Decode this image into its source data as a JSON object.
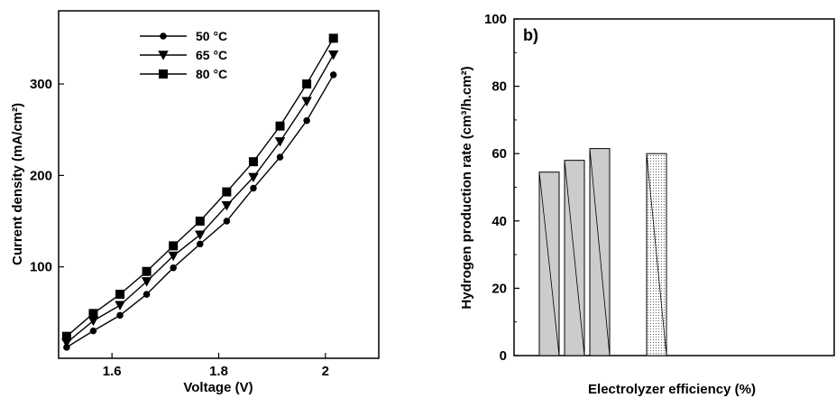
{
  "chart_data": [
    {
      "type": "line",
      "title": "",
      "xlabel": "Voltage (V)",
      "ylabel": "Current density (mA/cm²)",
      "xlim": [
        1.5,
        2.1
      ],
      "ylim": [
        0,
        380
      ],
      "xticks": [
        "1.6",
        "1.8",
        "2"
      ],
      "xtick_values": [
        1.6,
        1.8,
        2.0
      ],
      "yticks": [
        "100",
        "200",
        "300"
      ],
      "ytick_values": [
        100,
        200,
        300
      ],
      "grid": false,
      "legend_position": "top-left",
      "x": [
        1.515,
        1.565,
        1.615,
        1.665,
        1.715,
        1.765,
        1.815,
        1.865,
        1.915,
        1.965,
        2.015
      ],
      "series": [
        {
          "name": "50 °C",
          "marker": "circle",
          "values": [
            12,
            30,
            47,
            70,
            99,
            125,
            150,
            186,
            220,
            260,
            310
          ]
        },
        {
          "name": "65 °C",
          "marker": "triangle-down",
          "values": [
            17,
            41,
            58,
            84,
            112,
            135,
            167,
            198,
            237,
            281,
            332
          ]
        },
        {
          "name": "80 °C",
          "marker": "square",
          "values": [
            24,
            49,
            70,
            95,
            123,
            150,
            182,
            215,
            254,
            300,
            350
          ]
        }
      ]
    },
    {
      "type": "bar",
      "panel_label": "b)",
      "title": "",
      "xlabel": "Electrolyzer efficiency (%)",
      "ylabel": "Hydrogen production rate (cm³/h.cm²)",
      "ylim": [
        0,
        100
      ],
      "yticks": [
        "0",
        "20",
        "40",
        "60",
        "80",
        "100"
      ],
      "ytick_values": [
        0,
        20,
        40,
        60,
        80,
        100
      ],
      "grid": false,
      "values": [
        54.5,
        58,
        61.5,
        60
      ],
      "bar_styles": [
        "solid",
        "solid",
        "solid",
        "dotted"
      ],
      "bar_colors": [
        "#cccccc",
        "#cccccc",
        "#cccccc",
        "#eeeeee"
      ]
    }
  ]
}
